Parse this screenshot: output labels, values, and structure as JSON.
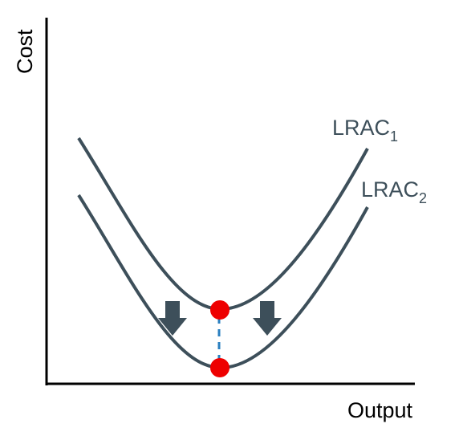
{
  "axes": {
    "y_label": "Cost",
    "x_label": "Output"
  },
  "curves": [
    {
      "name": "LRAC",
      "subscript": "1"
    },
    {
      "name": "LRAC",
      "subscript": "2"
    }
  ]
}
